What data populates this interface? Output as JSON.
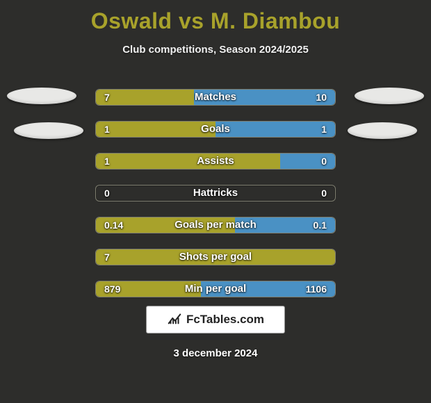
{
  "title": {
    "player1": "Oswald",
    "vs": "vs",
    "player2": "M. Diambou",
    "color": "#a8a22b"
  },
  "subtitle": "Club competitions, Season 2024/2025",
  "colors": {
    "left_bar": "#a8a22b",
    "right_bar": "#4a91c4",
    "track_border": "#7d7d6f",
    "background": "#2d2d2b"
  },
  "rows": [
    {
      "label": "Matches",
      "left_val": "7",
      "right_val": "10",
      "left_pct": 41,
      "right_pct": 59
    },
    {
      "label": "Goals",
      "left_val": "1",
      "right_val": "1",
      "left_pct": 50,
      "right_pct": 50
    },
    {
      "label": "Assists",
      "left_val": "1",
      "right_val": "0",
      "left_pct": 77,
      "right_pct": 23
    },
    {
      "label": "Hattricks",
      "left_val": "0",
      "right_val": "0",
      "left_pct": 0,
      "right_pct": 0
    },
    {
      "label": "Goals per match",
      "left_val": "0.14",
      "right_val": "0.1",
      "left_pct": 58,
      "right_pct": 42
    },
    {
      "label": "Shots per goal",
      "left_val": "7",
      "right_val": "",
      "left_pct": 100,
      "right_pct": 0
    },
    {
      "label": "Min per goal",
      "left_val": "879",
      "right_val": "1106",
      "left_pct": 44,
      "right_pct": 56
    }
  ],
  "badge_text": "FcTables.com",
  "date": "3 december 2024"
}
